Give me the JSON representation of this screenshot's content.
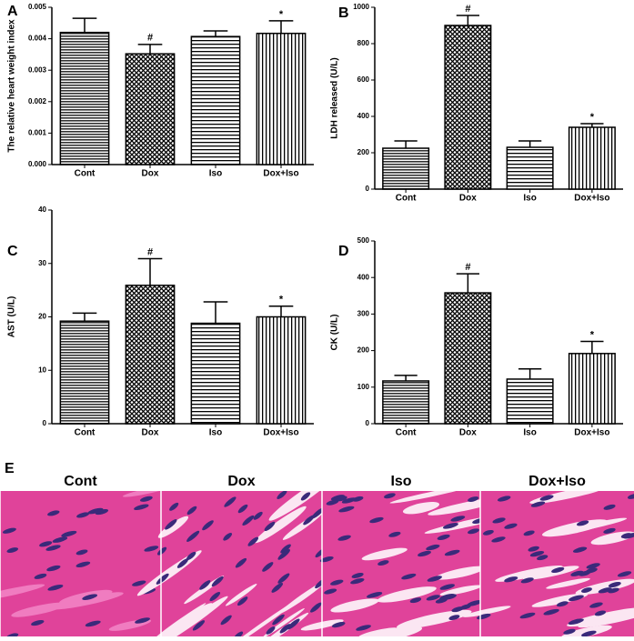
{
  "chart_data": [
    {
      "type": "bar",
      "panel": "A",
      "ylabel": "The relative heart weight index",
      "categories": [
        "Cont",
        "Dox",
        "Iso",
        "Dox+Iso"
      ],
      "values": [
        0.0042,
        0.00352,
        0.00407,
        0.00417
      ],
      "errors": [
        0.00045,
        0.0003,
        0.00018,
        0.0004
      ],
      "markers": [
        null,
        "#",
        null,
        "*"
      ],
      "color": "#000000",
      "ylim": [
        0,
        0.005
      ],
      "yticks": [
        {
          "value": 0,
          "label": "0.000"
        },
        {
          "value": 0.001,
          "label": "0.001"
        },
        {
          "value": 0.002,
          "label": "0.002"
        },
        {
          "value": 0.003,
          "label": "0.003"
        },
        {
          "value": 0.004,
          "label": "0.004"
        },
        {
          "value": 0.005,
          "label": "0.005"
        }
      ]
    },
    {
      "type": "bar",
      "panel": "B",
      "ylabel": "LDH released  (U/L)",
      "categories": [
        "Cont",
        "Dox",
        "Iso",
        "Dox+Iso"
      ],
      "values": [
        225,
        900,
        230,
        340
      ],
      "errors": [
        40,
        55,
        35,
        20
      ],
      "markers": [
        null,
        "#",
        null,
        "*"
      ],
      "color": "#000000",
      "ylim": [
        0,
        1000
      ],
      "yticks": [
        0,
        200,
        400,
        600,
        800,
        1000
      ]
    },
    {
      "type": "bar",
      "panel": "C",
      "ylabel": "AST (U/L)",
      "categories": [
        "Cont",
        "Dox",
        "Iso",
        "Dox+Iso"
      ],
      "values": [
        19.2,
        25.9,
        18.8,
        20
      ],
      "errors": [
        1.5,
        5,
        4,
        2
      ],
      "markers": [
        null,
        "#",
        null,
        "*"
      ],
      "color": "#000000",
      "ylim": [
        0,
        40
      ],
      "yticks": [
        0,
        10,
        20,
        30,
        40
      ]
    },
    {
      "type": "bar",
      "panel": "D",
      "ylabel": "CK (U/L)",
      "categories": [
        "Cont",
        "Dox",
        "Iso",
        "Dox+Iso"
      ],
      "values": [
        117,
        358,
        122,
        192
      ],
      "errors": [
        15,
        52,
        28,
        33
      ],
      "markers": [
        null,
        "#",
        null,
        "*"
      ],
      "color": "#000000",
      "ylim": [
        0,
        500
      ],
      "yticks": [
        0,
        100,
        200,
        300,
        400,
        500
      ]
    }
  ],
  "panel_e": {
    "label": "E",
    "titles": [
      "Cont",
      "Dox",
      "Iso",
      "Dox+Iso"
    ]
  }
}
